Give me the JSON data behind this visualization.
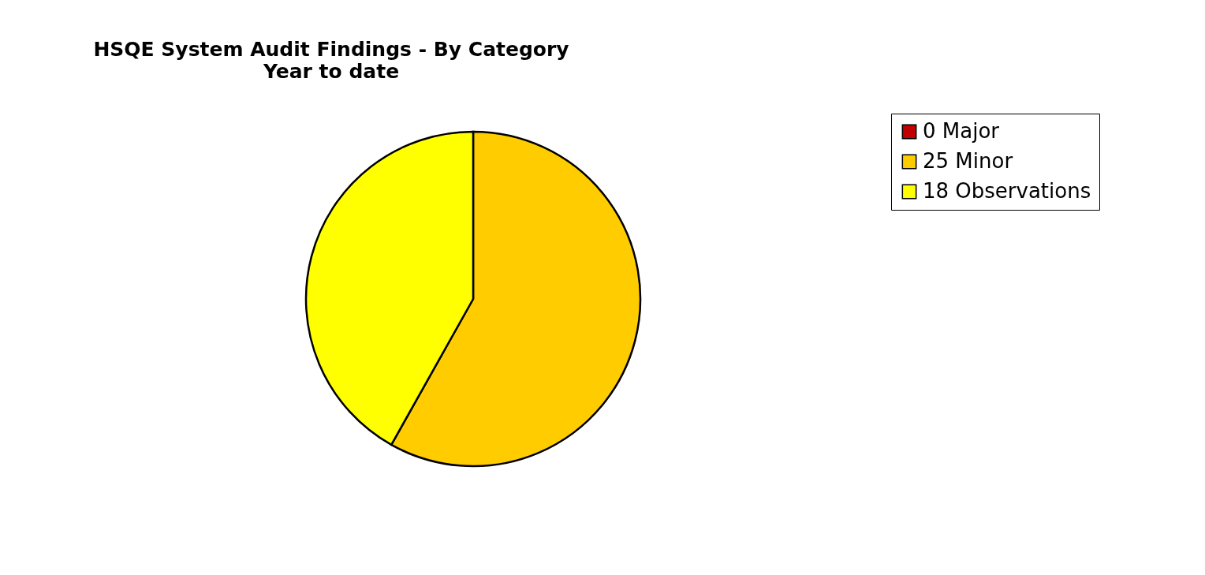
{
  "chart_data": {
    "type": "pie",
    "title": "HSQE System Audit Findings - By Category",
    "subtitle": "Year to date",
    "categories": [
      "0 Major",
      "25 Minor",
      "18 Observations"
    ],
    "values": [
      0,
      25,
      18
    ],
    "colors": [
      "#c00000",
      "#ffcc00",
      "#ffff00"
    ],
    "legend": "right"
  }
}
